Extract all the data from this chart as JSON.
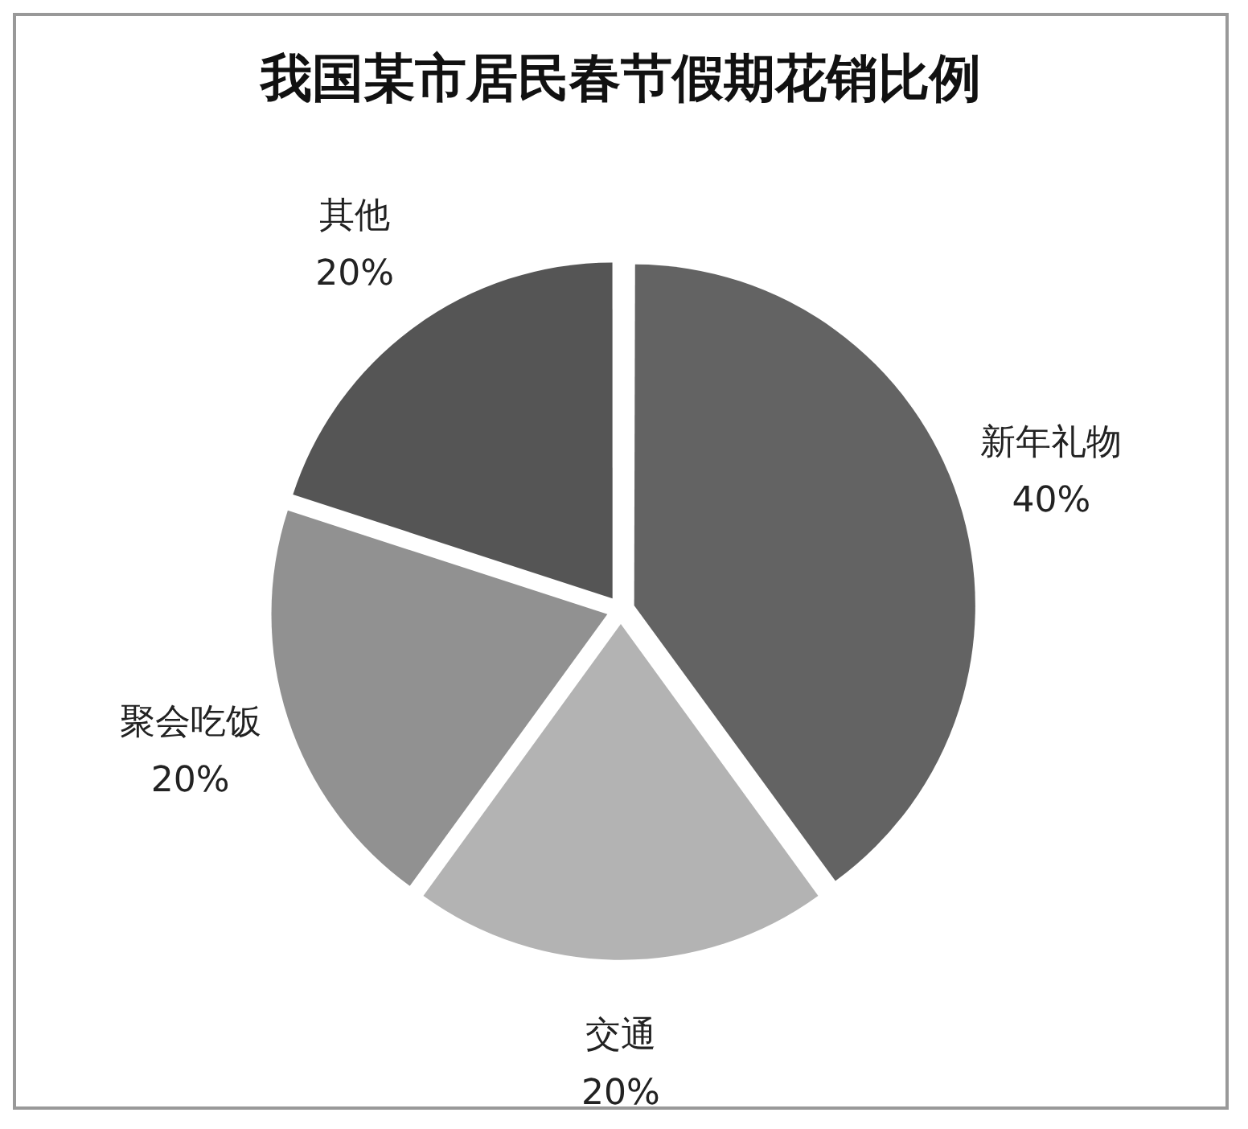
{
  "chart_data": {
    "type": "pie",
    "title": "我国某市居民春节假期花销比例",
    "categories": [
      "新年礼物",
      "交通",
      "聚会吃饭",
      "其他"
    ],
    "values": [
      40,
      20,
      20,
      20
    ],
    "value_labels": [
      "40%",
      "20%",
      "20%",
      "20%"
    ],
    "colors": [
      "#636363",
      "#b3b3b3",
      "#919191",
      "#555555"
    ],
    "legend": false
  }
}
